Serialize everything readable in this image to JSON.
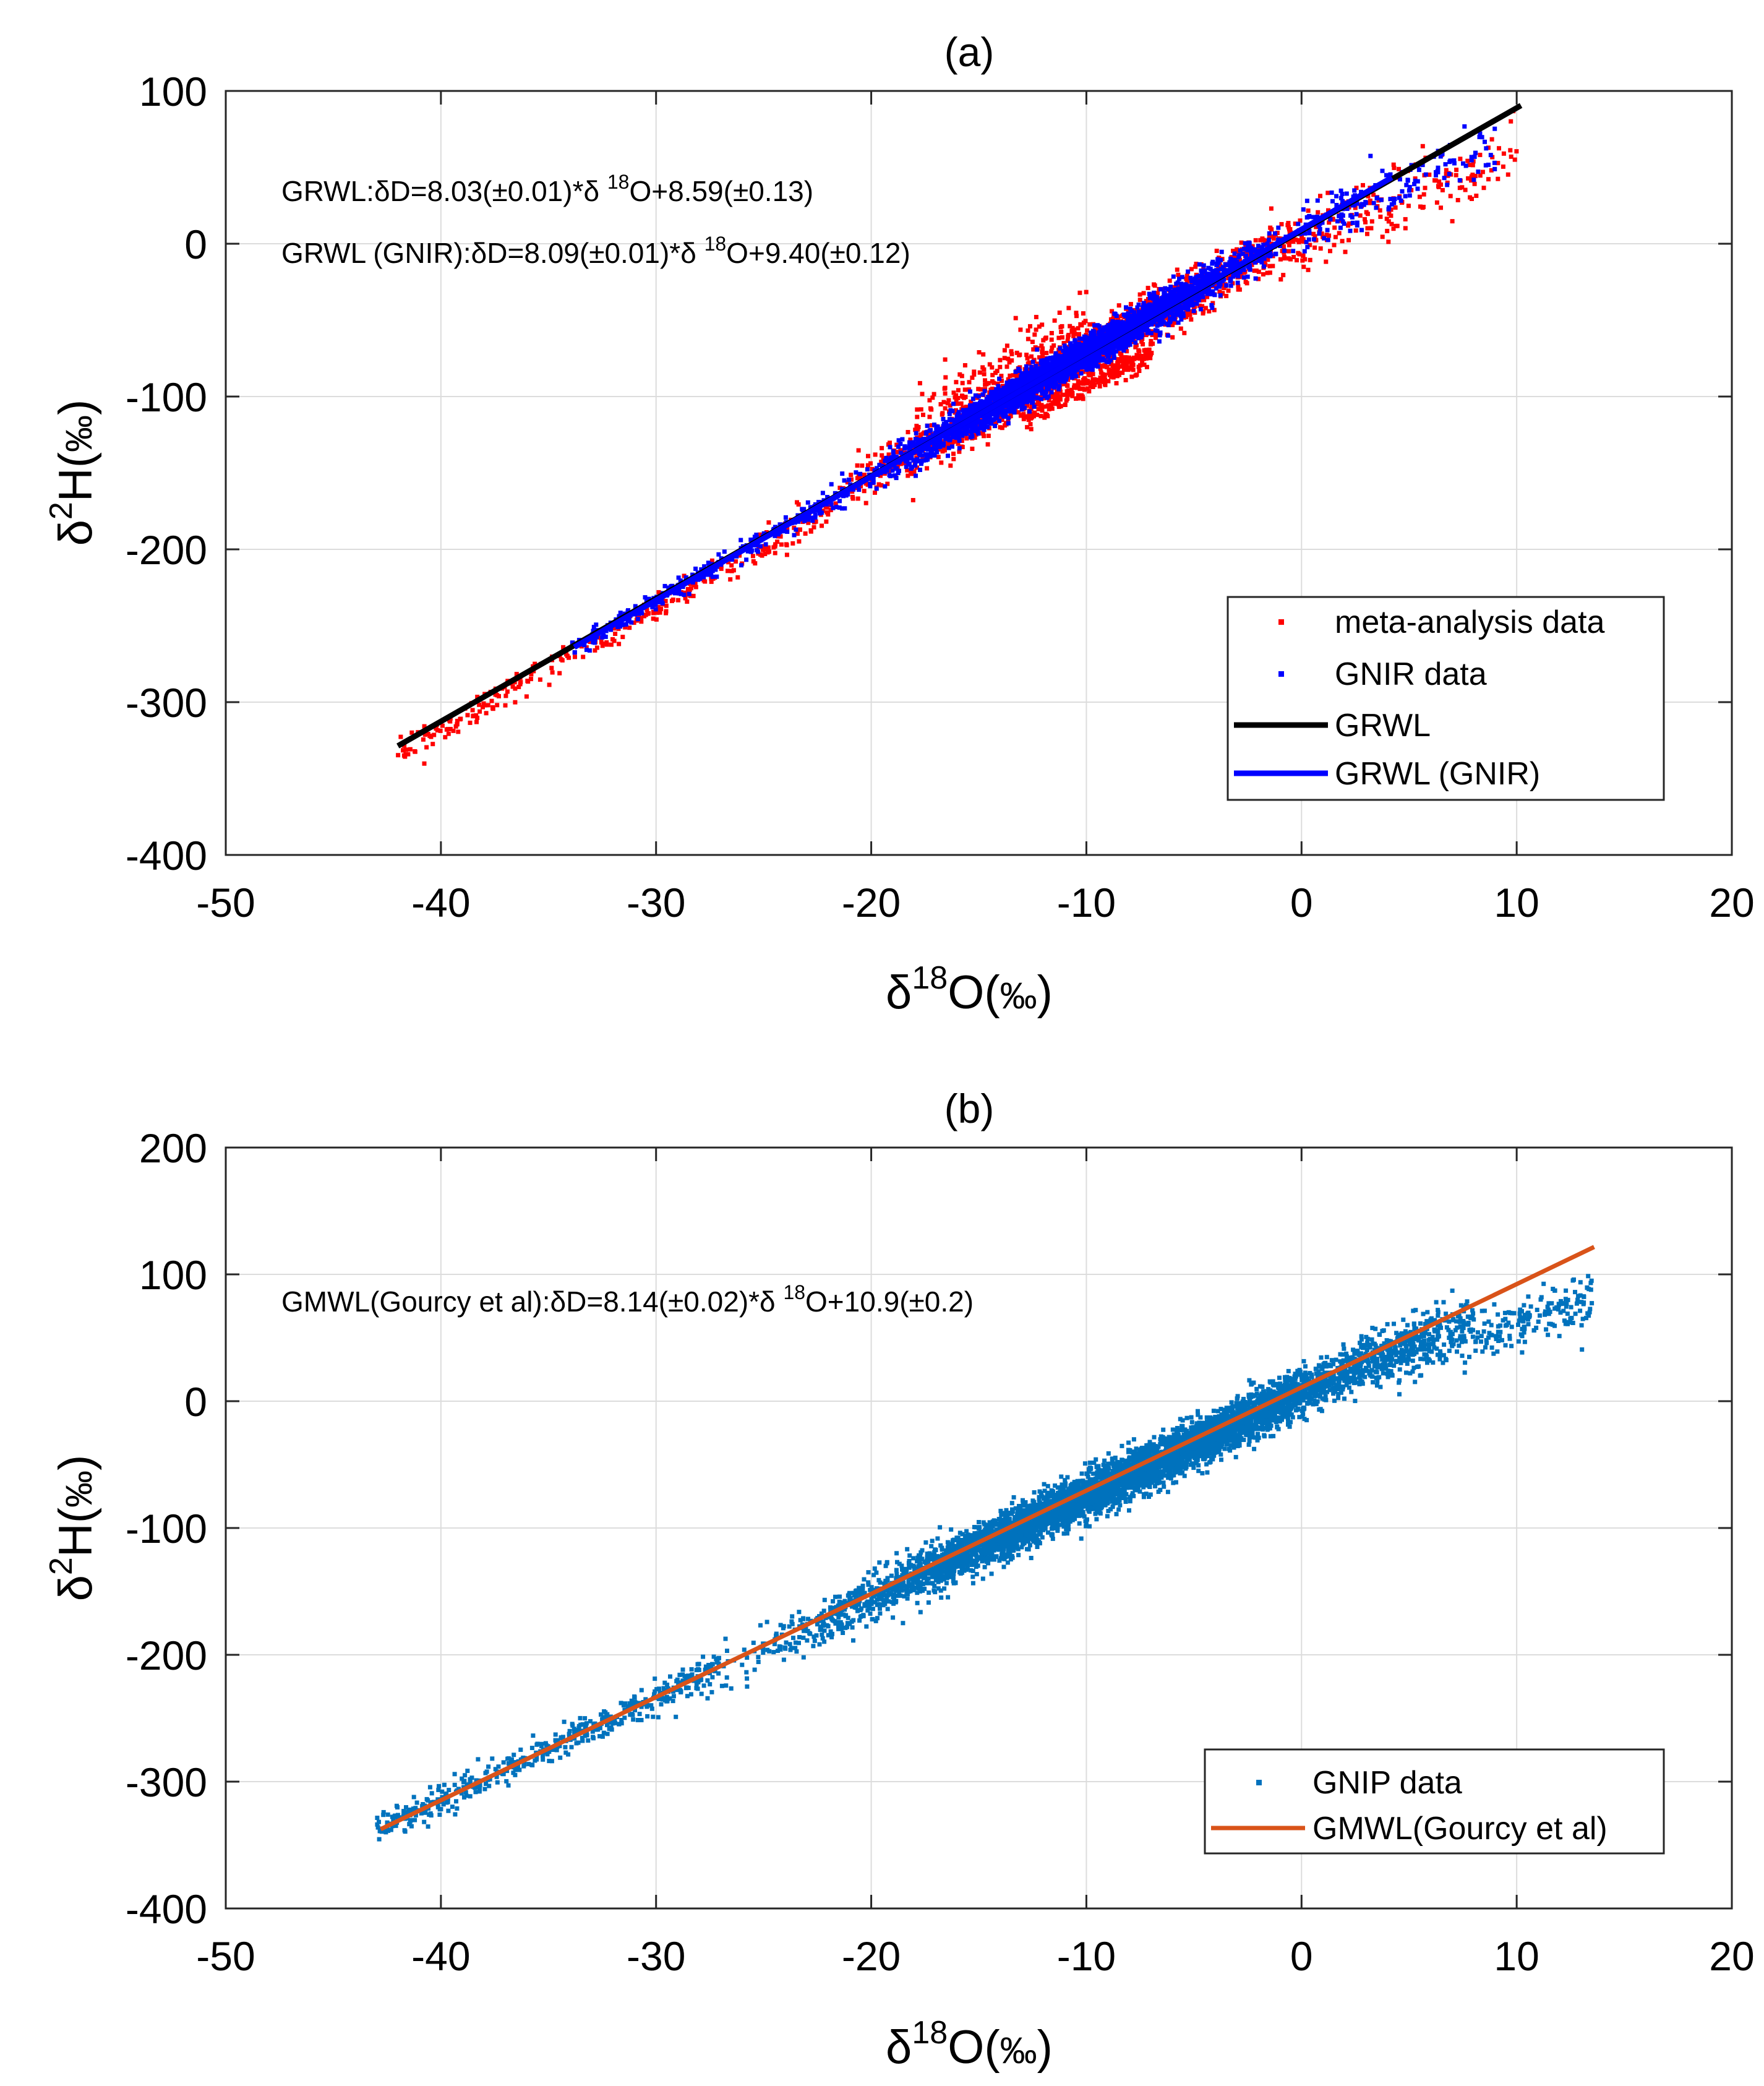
{
  "chart_data": [
    {
      "type": "scatter",
      "title": "(a)",
      "xlabel": "δ18O(‰)",
      "xlabel_parts": {
        "sym": "δ",
        "sup": "18",
        "rest": "O(",
        "unit": "‰",
        "close": ")"
      },
      "ylabel": "δ2H(‰)",
      "ylabel_parts": {
        "sym": "δ",
        "sup": "2",
        "rest": "H(",
        "unit": "‰",
        "close": ")"
      },
      "xlim": [
        -50,
        20
      ],
      "ylim": [
        -400,
        100
      ],
      "xticks": [
        -50,
        -40,
        -30,
        -20,
        -10,
        0,
        10,
        20
      ],
      "yticks": [
        -400,
        -300,
        -200,
        -100,
        0,
        100
      ],
      "grid": true,
      "annotations": [
        {
          "prefix": "GRWL:δD=8.03(±0.01)*δ ",
          "sup": "18",
          "suffix": "O+8.59(±0.13)"
        },
        {
          "prefix": "GRWL (GNIR):δD=8.09(±0.01)*δ ",
          "sup": "18",
          "suffix": "O+9.40(±0.12)"
        }
      ],
      "legend_position": "bottom-right",
      "series": [
        {
          "name": "meta-analysis data",
          "kind": "points",
          "color": "#ff0000",
          "x_range": [
            -42.3,
            10.2
          ],
          "n_points": 2600,
          "cloud": "meta"
        },
        {
          "name": "GNIR data",
          "kind": "points",
          "color": "#0000ff",
          "x_range": [
            -34,
            9
          ],
          "n_points": 3600,
          "cloud": "gnir"
        },
        {
          "name": "GRWL",
          "kind": "line",
          "color": "#000000",
          "slope": 8.03,
          "intercept": 8.59,
          "x": [
            -42.0,
            10.2
          ]
        },
        {
          "name": "GRWL (GNIR)",
          "kind": "line",
          "color": "#0000ff",
          "slope": 8.09,
          "intercept": 9.4,
          "x": [
            -33.8,
            4.2
          ]
        }
      ]
    },
    {
      "type": "scatter",
      "title": "(b)",
      "xlabel": "δ18O(‰)",
      "xlabel_parts": {
        "sym": "δ",
        "sup": "18",
        "rest": "O(",
        "unit": "‰",
        "close": ")"
      },
      "ylabel": "δ2H(‰)",
      "ylabel_parts": {
        "sym": "δ",
        "sup": "2",
        "rest": "H(",
        "unit": "‰",
        "close": ")"
      },
      "xlim": [
        -50,
        20
      ],
      "ylim": [
        -400,
        200
      ],
      "xticks": [
        -50,
        -40,
        -30,
        -20,
        -10,
        0,
        10,
        20
      ],
      "yticks": [
        -400,
        -300,
        -200,
        -100,
        0,
        100,
        200
      ],
      "grid": true,
      "annotations": [
        {
          "prefix": "GMWL(Gourcy et al):δD=8.14(±0.02)*δ ",
          "sup": "18",
          "suffix": "O+10.9(±0.2)"
        }
      ],
      "legend_position": "bottom-right",
      "series": [
        {
          "name": "GNIP data",
          "kind": "points",
          "color": "#0072bd",
          "x_range": [
            -43,
            13.5
          ],
          "n_points": 6500,
          "cloud": "gnip"
        },
        {
          "name": "GMWL(Gourcy et al)",
          "kind": "line",
          "color": "#d95319",
          "slope": 8.14,
          "intercept": 10.9,
          "x": [
            -42.8,
            13.6
          ]
        }
      ]
    }
  ]
}
